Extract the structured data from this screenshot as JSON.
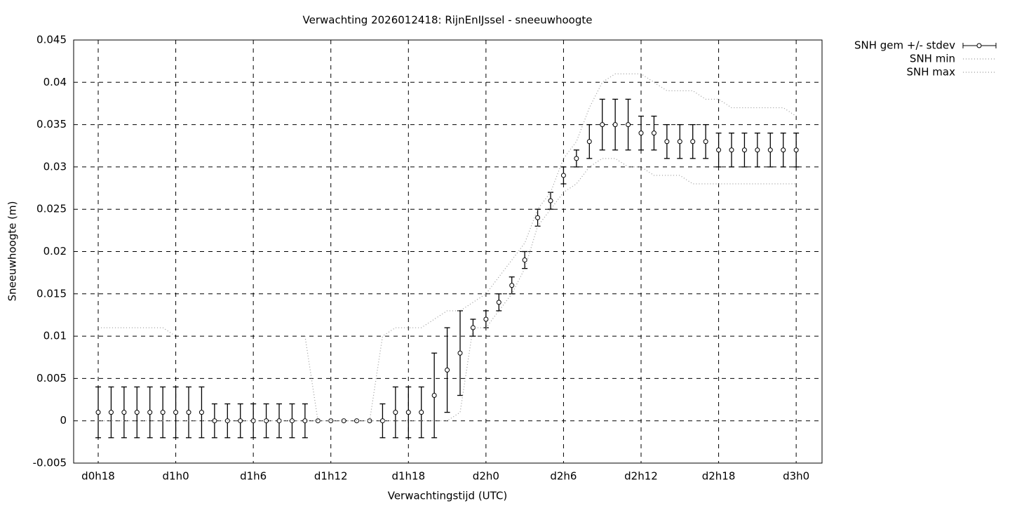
{
  "chart_data": {
    "type": "errorbar",
    "title": "Verwachting 2026012418: RijnEnIJssel - sneeuwhoogte",
    "xlabel": "Verwachtingstijd (UTC)",
    "ylabel": "Sneeuwhoogte (m)",
    "x": [
      18,
      19,
      20,
      21,
      22,
      23,
      24,
      25,
      26,
      27,
      28,
      29,
      30,
      31,
      32,
      33,
      34,
      35,
      36,
      37,
      38,
      39,
      40,
      41,
      42,
      43,
      44,
      45,
      46,
      47,
      48,
      49,
      50,
      51,
      52,
      53,
      54,
      55,
      56,
      57,
      58,
      59,
      60,
      61,
      62,
      63,
      64,
      65,
      66,
      67,
      68,
      69,
      70,
      71,
      72
    ],
    "xlim": [
      16.1,
      74
    ],
    "xticks": [
      {
        "value": 18,
        "label": "d0h18"
      },
      {
        "value": 24,
        "label": "d1h0"
      },
      {
        "value": 30,
        "label": "d1h6"
      },
      {
        "value": 36,
        "label": "d1h12"
      },
      {
        "value": 42,
        "label": "d1h18"
      },
      {
        "value": 48,
        "label": "d2h0"
      },
      {
        "value": 54,
        "label": "d2h6"
      },
      {
        "value": 60,
        "label": "d2h12"
      },
      {
        "value": 66,
        "label": "d2h18"
      },
      {
        "value": 72,
        "label": "d3h0"
      }
    ],
    "ylim": [
      -0.005,
      0.045
    ],
    "yticks": [
      -0.005,
      0,
      0.005,
      0.01,
      0.015,
      0.02,
      0.025,
      0.03,
      0.035,
      0.04,
      0.045
    ],
    "grid": true,
    "legend": "outside-top-right",
    "series": [
      {
        "name": "SNH gem +/- stdev",
        "color": "#000000",
        "style": "errorbars",
        "values": [
          0.001,
          0.001,
          0.001,
          0.001,
          0.001,
          0.001,
          0.001,
          0.001,
          0.001,
          0,
          0,
          0,
          0,
          0,
          0,
          0,
          0,
          0,
          0,
          0,
          0,
          0,
          0,
          0.001,
          0.001,
          0.001,
          0.003,
          0.006,
          0.008,
          0.011,
          0.012,
          0.014,
          0.016,
          0.019,
          0.024,
          0.026,
          0.029,
          0.031,
          0.033,
          0.035,
          0.035,
          0.035,
          0.034,
          0.034,
          0.033,
          0.033,
          0.033,
          0.033,
          0.032,
          0.032,
          0.032,
          0.032,
          0.032,
          0.032,
          0.032
        ],
        "errors": [
          0.003,
          0.003,
          0.003,
          0.003,
          0.003,
          0.003,
          0.003,
          0.003,
          0.003,
          0.002,
          0.002,
          0.002,
          0.002,
          0.002,
          0.002,
          0.002,
          0.002,
          null,
          null,
          null,
          null,
          null,
          0.002,
          0.003,
          0.003,
          0.003,
          0.005,
          0.005,
          0.005,
          0.001,
          0.001,
          0.001,
          0.001,
          0.001,
          0.001,
          0.001,
          0.001,
          0.001,
          0.002,
          0.003,
          0.003,
          0.003,
          0.002,
          0.002,
          0.002,
          0.002,
          0.002,
          0.002,
          0.002,
          0.002,
          0.002,
          0.002,
          0.002,
          0.002,
          0.002
        ]
      },
      {
        "name": "SNH min",
        "color": "#999999",
        "style": "dotted",
        "values": [
          0,
          0,
          0,
          0,
          0,
          0,
          0,
          0,
          0,
          0,
          0,
          0,
          0,
          0,
          0,
          0,
          0,
          0,
          0,
          0,
          0,
          0,
          0,
          0,
          0,
          0,
          0,
          0,
          0.001,
          0.011,
          0.011,
          0.013,
          0.015,
          0.018,
          0.023,
          0.025,
          0.027,
          0.028,
          0.03,
          0.031,
          0.031,
          0.03,
          0.03,
          0.029,
          0.029,
          0.029,
          0.028,
          0.028,
          0.028,
          0.028,
          0.028,
          0.028,
          0.028,
          0.028,
          0.028
        ]
      },
      {
        "name": "SNH max",
        "color": "#999999",
        "style": "dotted",
        "values": [
          0.011,
          0.011,
          0.011,
          0.011,
          0.011,
          0.011,
          0.01,
          null,
          null,
          null,
          null,
          null,
          null,
          null,
          null,
          null,
          0.01,
          0,
          0,
          0,
          0,
          0,
          0.01,
          0.011,
          0.011,
          0.011,
          0.012,
          0.013,
          0.013,
          0.014,
          0.015,
          0.017,
          0.019,
          0.021,
          0.025,
          0.027,
          0.031,
          0.033,
          0.037,
          0.04,
          0.041,
          0.041,
          0.041,
          0.04,
          0.039,
          0.039,
          0.039,
          0.038,
          0.038,
          0.037,
          0.037,
          0.037,
          0.037,
          0.037,
          0.036
        ]
      }
    ]
  }
}
